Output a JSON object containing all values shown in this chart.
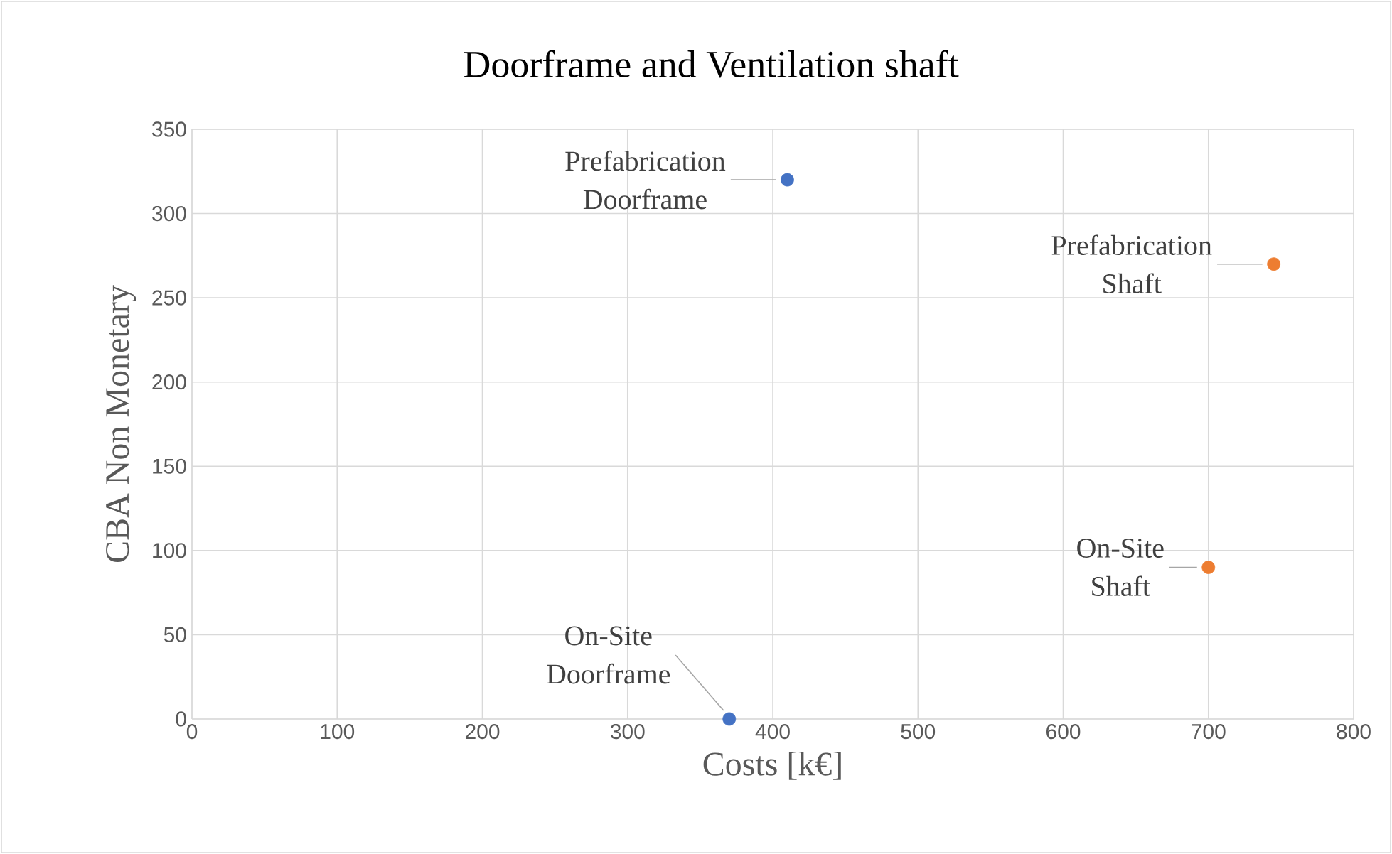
{
  "chart_data": {
    "type": "scatter",
    "title": "Doorframe and Ventilation shaft",
    "xlabel": "Costs [k€]",
    "ylabel": "CBA Non Monetary",
    "series": [
      {
        "color": "#4472c4",
        "x": [
          410,
          370
        ],
        "values": [
          320,
          0
        ]
      },
      {
        "color": "#ed7d31",
        "x": [
          745,
          700
        ],
        "values": [
          270,
          90
        ]
      }
    ],
    "annotations": [
      {
        "text": "Prefabrication Doorframe",
        "x": 410,
        "y": 320
      },
      {
        "text": "Prefabrication Shaft",
        "x": 745,
        "y": 270
      },
      {
        "text": "On-Site Shaft",
        "x": 700,
        "y": 90
      },
      {
        "text": "On-Site Doorframe",
        "x": 370,
        "y": 0
      }
    ],
    "xlim": [
      0,
      800
    ],
    "ylim": [
      0,
      350
    ],
    "xticks": [
      0,
      100,
      200,
      300,
      400,
      500,
      600,
      700,
      800
    ],
    "yticks": [
      0,
      50,
      100,
      150,
      200,
      250,
      300,
      350
    ],
    "grid": true
  }
}
